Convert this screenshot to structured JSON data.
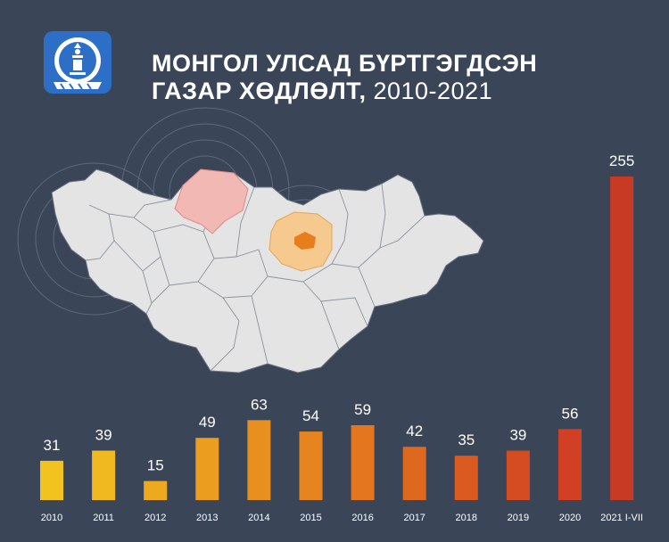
{
  "header": {
    "title_line1": "МОНГОЛ УЛСАД БҮРТГЭГДСЭН",
    "title_line2": "ГАЗАР ХӨДЛӨЛТ,",
    "title_years": " 2010-2021"
  },
  "icons": {
    "logo": "mongolia-emblem-icon",
    "map": "mongolia-map-illustration"
  },
  "colors": {
    "background": "#3a4558",
    "highlight_region": "#f2b8b4",
    "epicenter_region": "#f6c98e",
    "map_fill": "#e4e4e4"
  },
  "chart_data": {
    "type": "bar",
    "categories": [
      "2010",
      "2011",
      "2012",
      "2013",
      "2014",
      "2015",
      "2016",
      "2017",
      "2018",
      "2019",
      "2020",
      "2021 I-VII"
    ],
    "values": [
      31,
      39,
      15,
      49,
      63,
      54,
      59,
      42,
      35,
      39,
      56,
      255
    ],
    "colors": [
      "#f2c31f",
      "#f0b91f",
      "#eeaa1f",
      "#eb9d1f",
      "#e8901f",
      "#e6841f",
      "#e3761f",
      "#df681f",
      "#db5a20",
      "#d64c22",
      "#d14024",
      "#c93a25"
    ],
    "xlabel": "",
    "ylabel": "",
    "ylim": [
      0,
      255
    ],
    "grid": false,
    "legend": "none"
  }
}
